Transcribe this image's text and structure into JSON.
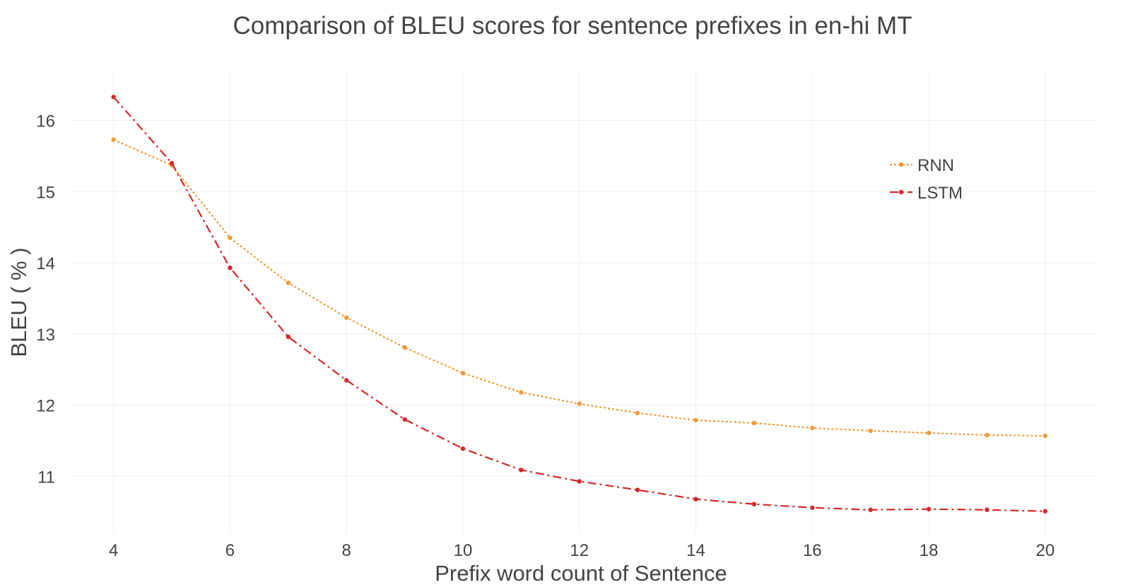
{
  "chart_data": {
    "type": "line",
    "title": "Comparison of BLEU scores for sentence prefixes in en-hi MT",
    "xlabel": "Prefix word count of Sentence",
    "ylabel": "BLEU ( % )",
    "x": [
      4,
      5,
      6,
      7,
      8,
      9,
      10,
      11,
      12,
      13,
      14,
      15,
      16,
      17,
      18,
      19,
      20
    ],
    "xlim": [
      3.3,
      20.9
    ],
    "ylim": [
      10.2,
      16.7
    ],
    "xticks": [
      4,
      6,
      8,
      10,
      12,
      14,
      16,
      18,
      20
    ],
    "yticks": [
      11,
      12,
      13,
      14,
      15,
      16
    ],
    "grid": true,
    "legend_position": "top-right",
    "series": [
      {
        "name": "RNN",
        "color": "#f29a38",
        "dash": "dotted",
        "values": [
          15.73,
          15.37,
          14.35,
          13.72,
          13.23,
          12.81,
          12.45,
          12.18,
          12.02,
          11.89,
          11.79,
          11.75,
          11.68,
          11.64,
          11.61,
          11.58,
          11.57
        ]
      },
      {
        "name": "LSTM",
        "color": "#d62728",
        "dash": "dashdot",
        "values": [
          16.33,
          15.4,
          13.93,
          12.96,
          12.35,
          11.8,
          11.39,
          11.09,
          10.93,
          10.81,
          10.68,
          10.61,
          10.56,
          10.53,
          10.54,
          10.53,
          10.51
        ]
      }
    ]
  }
}
